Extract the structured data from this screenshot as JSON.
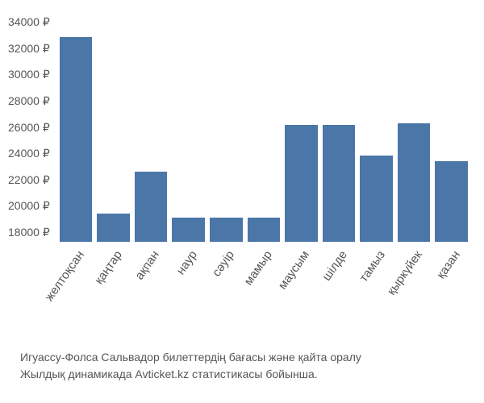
{
  "chart": {
    "type": "bar",
    "ymin": 18000,
    "ymax": 34000,
    "ytick_step": 2000,
    "currency_suffix": " ₽",
    "y_ticks": [
      34000,
      32000,
      30000,
      28000,
      26000,
      24000,
      22000,
      20000,
      18000
    ],
    "categories": [
      "желтоқсан",
      "қаңтар",
      "ақпан",
      "наур",
      "сәуір",
      "мамыр",
      "маусым",
      "шілде",
      "тамыз",
      "қыркүйек",
      "қазан"
    ],
    "values": [
      32500,
      20000,
      23000,
      19700,
      19700,
      19700,
      26300,
      26300,
      24100,
      26400,
      23700
    ],
    "bar_color": "#4a76a8",
    "label_color": "#555555",
    "background_color": "#ffffff",
    "label_fontsize": 14
  },
  "caption": {
    "line1": "Игуассу-Фолса Сальвадор билеттердің бағасы және қайта оралу",
    "line2": "Жылдық динамикада Avticket.kz статистикасы бойынша."
  }
}
